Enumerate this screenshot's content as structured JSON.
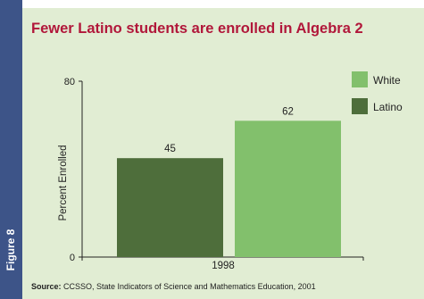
{
  "figure_label": "Figure 8",
  "source": {
    "label": "Source:",
    "text": "CCSSO, State Indicators of Science and Mathematics Education, 2001"
  },
  "colors": {
    "tab": "#3d5488",
    "panel": "#e1edd3",
    "title": "#b1173a",
    "latino": "#4e6e3b",
    "white": "#82c06c"
  },
  "chart_data": {
    "type": "bar",
    "title": "Fewer Latino students are enrolled in Algebra 2",
    "xlabel": "",
    "ylabel": "Percent Enrolled",
    "ylim": [
      0,
      80
    ],
    "ytick_labels": [
      "0",
      "80"
    ],
    "categories": [
      "1998"
    ],
    "series": [
      {
        "name": "Latino",
        "values": [
          45
        ],
        "color": "#4e6e3b"
      },
      {
        "name": "White",
        "values": [
          62
        ],
        "color": "#82c06c"
      }
    ],
    "legend": {
      "placement": "right",
      "entries": [
        "White",
        "Latino"
      ]
    },
    "grid": false
  }
}
